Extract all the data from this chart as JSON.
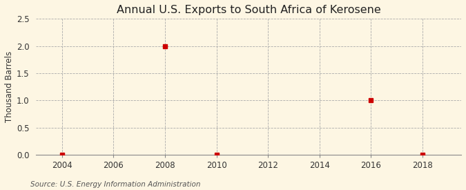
{
  "title": "Annual U.S. Exports to South Africa of Kerosene",
  "ylabel": "Thousand Barrels",
  "source": "Source: U.S. Energy Information Administration",
  "xlim": [
    2003.0,
    2019.5
  ],
  "ylim": [
    0,
    2.5
  ],
  "yticks": [
    0.0,
    0.5,
    1.0,
    1.5,
    2.0,
    2.5
  ],
  "xticks": [
    2004,
    2006,
    2008,
    2010,
    2012,
    2014,
    2016,
    2018
  ],
  "data_x": [
    2004,
    2008,
    2010,
    2016,
    2018
  ],
  "data_y": [
    0.0,
    2.0,
    0.0,
    1.0,
    0.0
  ],
  "marker_color": "#cc0000",
  "marker_style": "s",
  "marker_size": 4,
  "bg_color": "#fdf6e3",
  "grid_color": "#aaaaaa",
  "grid_style": "--",
  "title_fontsize": 11.5,
  "label_fontsize": 8.5,
  "tick_fontsize": 8.5,
  "source_fontsize": 7.5
}
